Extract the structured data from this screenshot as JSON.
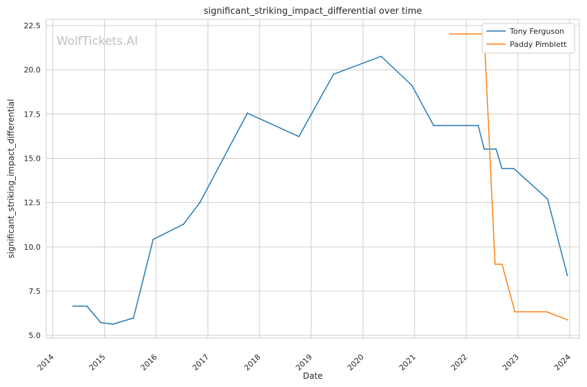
{
  "chart_data": {
    "type": "line",
    "title": "significant_striking_impact_differential over time",
    "xlabel": "Date",
    "ylabel": "significant_striking_impact_differential",
    "watermark": "WolfTickets.AI",
    "xlim": [
      "2013-11-15",
      "2024-03-10"
    ],
    "ylim": [
      4.85,
      22.85
    ],
    "grid": true,
    "legend_position": "top-right",
    "x_ticks": [
      {
        "label": "2014",
        "value": "2014-01-01"
      },
      {
        "label": "2015",
        "value": "2015-01-01"
      },
      {
        "label": "2016",
        "value": "2016-01-01"
      },
      {
        "label": "2017",
        "value": "2017-01-01"
      },
      {
        "label": "2018",
        "value": "2018-01-01"
      },
      {
        "label": "2019",
        "value": "2019-01-01"
      },
      {
        "label": "2020",
        "value": "2020-01-01"
      },
      {
        "label": "2021",
        "value": "2021-01-01"
      },
      {
        "label": "2022",
        "value": "2022-01-01"
      },
      {
        "label": "2023",
        "value": "2023-01-01"
      },
      {
        "label": "2024",
        "value": "2024-01-01"
      }
    ],
    "y_ticks": [
      {
        "label": "5.0",
        "value": 5.0
      },
      {
        "label": "7.5",
        "value": 7.5
      },
      {
        "label": "10.0",
        "value": 10.0
      },
      {
        "label": "12.5",
        "value": 12.5
      },
      {
        "label": "15.0",
        "value": 15.0
      },
      {
        "label": "17.5",
        "value": 17.5
      },
      {
        "label": "20.0",
        "value": 20.0
      },
      {
        "label": "22.5",
        "value": 22.5
      }
    ],
    "series": [
      {
        "name": "Tony Ferguson",
        "color": "#1f77b4",
        "points": [
          {
            "x": "2014-05-24",
            "y": 6.65
          },
          {
            "x": "2014-08-30",
            "y": 6.65
          },
          {
            "x": "2014-12-06",
            "y": 5.72
          },
          {
            "x": "2015-02-28",
            "y": 5.63
          },
          {
            "x": "2015-07-25",
            "y": 5.98
          },
          {
            "x": "2015-12-11",
            "y": 10.42
          },
          {
            "x": "2016-07-13",
            "y": 11.28
          },
          {
            "x": "2016-11-05",
            "y": 12.5
          },
          {
            "x": "2017-10-07",
            "y": 17.55
          },
          {
            "x": "2018-10-06",
            "y": 16.23
          },
          {
            "x": "2019-06-08",
            "y": 19.75
          },
          {
            "x": "2020-05-09",
            "y": 20.76
          },
          {
            "x": "2020-12-12",
            "y": 19.12
          },
          {
            "x": "2021-05-15",
            "y": 16.85
          },
          {
            "x": "2022-03-26",
            "y": 16.85
          },
          {
            "x": "2022-05-07",
            "y": 15.52
          },
          {
            "x": "2022-07-30",
            "y": 15.52
          },
          {
            "x": "2022-09-10",
            "y": 14.42
          },
          {
            "x": "2022-12-03",
            "y": 14.42
          },
          {
            "x": "2023-07-29",
            "y": 12.7
          },
          {
            "x": "2023-12-16",
            "y": 8.38
          }
        ]
      },
      {
        "name": "Paddy Pimblett",
        "color": "#ff7f0e",
        "points": [
          {
            "x": "2021-09-04",
            "y": 22.02
          },
          {
            "x": "2022-05-07",
            "y": 22.02
          },
          {
            "x": "2022-07-23",
            "y": 9.02
          },
          {
            "x": "2022-09-10",
            "y": 9.02
          },
          {
            "x": "2022-12-10",
            "y": 6.33
          },
          {
            "x": "2023-07-22",
            "y": 6.33
          },
          {
            "x": "2023-12-16",
            "y": 5.88
          }
        ]
      }
    ]
  }
}
